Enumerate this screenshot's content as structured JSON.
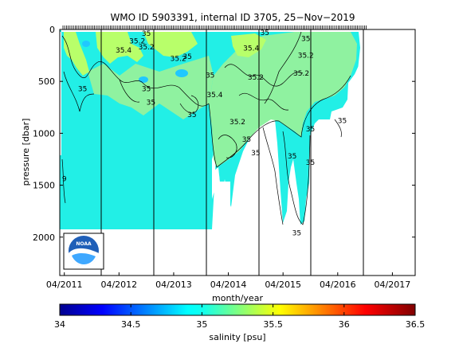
{
  "chart_data": {
    "type": "heatmap",
    "title": "WMO ID 5903391, internal ID 3705, 25−Nov−2019",
    "xlabel": "month/year",
    "ylabel": "pressure [dbar]",
    "x_tick_labels": [
      "04/2011",
      "04/2012",
      "04/2013",
      "04/2014",
      "04/2015",
      "04/2016",
      "04/2017"
    ],
    "xlim": [
      "2011-03",
      "2017-09"
    ],
    "y_ticks": [
      0,
      500,
      1000,
      1500,
      2000
    ],
    "ylim": [
      0,
      2370
    ],
    "y_reversed": true,
    "colorbar": {
      "label": "salinity [psu]",
      "ticks": [
        "34",
        "34.5",
        "35",
        "35.5",
        "36",
        "36.5"
      ],
      "range": [
        34,
        36.5
      ],
      "colormap": "jet"
    },
    "colors": {
      "deep_water": "#22efe6",
      "mid_water": "#8ff2a0",
      "upper_water": "#b8ff6a",
      "fresh_patch": "#20c8ff",
      "contour": "#000000"
    },
    "contour_labels": [
      {
        "text": "35",
        "x": "2014-12",
        "y": 30
      },
      {
        "text": "35.4",
        "x": "2014-09",
        "y": 180
      },
      {
        "text": "35.2",
        "x": "2014-10",
        "y": 460
      },
      {
        "text": "35.2",
        "x": "2015-08",
        "y": 420
      },
      {
        "text": "35",
        "x": "2015-09",
        "y": 90
      },
      {
        "text": "35.2",
        "x": "2015-09",
        "y": 250
      },
      {
        "text": "35",
        "x": "2013-12",
        "y": 440
      },
      {
        "text": "35.4",
        "x": "2014-01",
        "y": 630
      },
      {
        "text": "35.2",
        "x": "2014-06",
        "y": 890
      },
      {
        "text": "35",
        "x": "2016-05",
        "y": 880
      },
      {
        "text": "35",
        "x": "2015-10",
        "y": 960
      },
      {
        "text": "35",
        "x": "2015-10",
        "y": 1280
      },
      {
        "text": "35",
        "x": "2015-06",
        "y": 1220
      },
      {
        "text": "35",
        "x": "2014-08",
        "y": 1060
      },
      {
        "text": "35",
        "x": "2014-10",
        "y": 1190
      },
      {
        "text": "35",
        "x": "2013-08",
        "y": 820
      },
      {
        "text": "35",
        "x": "2012-11",
        "y": 700
      },
      {
        "text": "35",
        "x": "2012-10",
        "y": 570
      },
      {
        "text": "35",
        "x": "2011-08",
        "y": 570
      },
      {
        "text": "9",
        "x": "2011-04",
        "y": 1440
      },
      {
        "text": "35",
        "x": "2015-07",
        "y": 1960
      },
      {
        "text": "35",
        "x": "2012-10",
        "y": 40
      },
      {
        "text": "35.2",
        "x": "2012-08",
        "y": 110
      },
      {
        "text": "35.2",
        "x": "2012-10",
        "y": 170
      },
      {
        "text": "35.4",
        "x": "2012-05",
        "y": 200
      },
      {
        "text": "35",
        "x": "2013-07",
        "y": 260
      },
      {
        "text": "35.2",
        "x": "2013-05",
        "y": 280
      }
    ]
  }
}
